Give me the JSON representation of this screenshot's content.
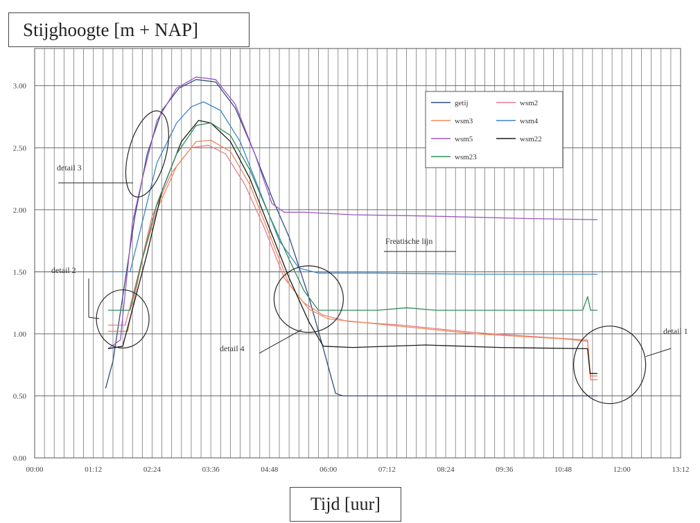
{
  "chart_data": {
    "type": "line",
    "title": "Stijghoogte [m + NAP]",
    "xlabel": "Tijd [uur]",
    "ylabel": "",
    "xlim_hours": [
      0,
      13.2
    ],
    "ylim": [
      0,
      3.3
    ],
    "x_ticks": [
      "00:00",
      "01:12",
      "02:24",
      "03:36",
      "04:48",
      "06:00",
      "07:12",
      "08:24",
      "09:36",
      "10:48",
      "12:00",
      "13:12"
    ],
    "y_ticks": [
      "0.00",
      "0.50",
      "1.00",
      "1.50",
      "2.00",
      "2.50",
      "3.00"
    ],
    "grid": true,
    "legend_position": "top-right",
    "series": [
      {
        "name": "getij",
        "color": "#2e4b7a",
        "points": [
          [
            1.45,
            0.56
          ],
          [
            1.6,
            0.78
          ],
          [
            1.8,
            1.3
          ],
          [
            2.05,
            1.95
          ],
          [
            2.3,
            2.45
          ],
          [
            2.6,
            2.8
          ],
          [
            2.95,
            2.98
          ],
          [
            3.3,
            3.05
          ],
          [
            3.7,
            3.03
          ],
          [
            4.1,
            2.82
          ],
          [
            4.5,
            2.45
          ],
          [
            4.9,
            2.05
          ],
          [
            5.2,
            1.78
          ],
          [
            5.6,
            1.3
          ],
          [
            5.9,
            0.88
          ],
          [
            6.15,
            0.52
          ],
          [
            6.3,
            0.5
          ],
          [
            7.0,
            0.5
          ],
          [
            9.0,
            0.5
          ],
          [
            11.5,
            0.5
          ]
        ]
      },
      {
        "name": "wsm2",
        "color": "#e87b8a",
        "points": [
          [
            1.5,
            1.07
          ],
          [
            1.85,
            1.07
          ],
          [
            2.1,
            1.45
          ],
          [
            2.4,
            1.95
          ],
          [
            2.8,
            2.3
          ],
          [
            3.2,
            2.5
          ],
          [
            3.55,
            2.52
          ],
          [
            3.9,
            2.45
          ],
          [
            4.3,
            2.2
          ],
          [
            4.7,
            1.85
          ],
          [
            5.1,
            1.45
          ],
          [
            5.5,
            1.25
          ],
          [
            5.9,
            1.15
          ],
          [
            6.4,
            1.1
          ],
          [
            7.5,
            1.07
          ],
          [
            9.0,
            1.01
          ],
          [
            10.5,
            0.97
          ],
          [
            11.3,
            0.95
          ],
          [
            11.36,
            0.63
          ],
          [
            11.5,
            0.63
          ]
        ]
      },
      {
        "name": "wsm3",
        "color": "#f08a55",
        "points": [
          [
            1.5,
            1.02
          ],
          [
            1.9,
            1.02
          ],
          [
            2.2,
            1.6
          ],
          [
            2.5,
            2.0
          ],
          [
            2.9,
            2.35
          ],
          [
            3.3,
            2.55
          ],
          [
            3.6,
            2.56
          ],
          [
            4.0,
            2.47
          ],
          [
            4.4,
            2.2
          ],
          [
            4.8,
            1.8
          ],
          [
            5.2,
            1.4
          ],
          [
            5.6,
            1.2
          ],
          [
            6.0,
            1.12
          ],
          [
            7.0,
            1.08
          ],
          [
            9.0,
            1.0
          ],
          [
            10.8,
            0.96
          ],
          [
            11.3,
            0.94
          ],
          [
            11.36,
            0.66
          ],
          [
            11.5,
            0.66
          ]
        ]
      },
      {
        "name": "wsm4",
        "color": "#3a86c8",
        "points": [
          [
            1.5,
            1.5
          ],
          [
            1.95,
            1.5
          ],
          [
            2.2,
            1.9
          ],
          [
            2.5,
            2.38
          ],
          [
            2.9,
            2.7
          ],
          [
            3.2,
            2.83
          ],
          [
            3.45,
            2.87
          ],
          [
            3.8,
            2.8
          ],
          [
            4.2,
            2.55
          ],
          [
            4.6,
            2.15
          ],
          [
            5.0,
            1.75
          ],
          [
            5.4,
            1.53
          ],
          [
            5.8,
            1.49
          ],
          [
            7.0,
            1.49
          ],
          [
            9.0,
            1.48
          ],
          [
            11.5,
            1.48
          ]
        ]
      },
      {
        "name": "wsm5",
        "color": "#9b55c4",
        "points": [
          [
            1.5,
            0.88
          ],
          [
            1.75,
            0.95
          ],
          [
            2.0,
            1.9
          ],
          [
            2.2,
            2.25
          ],
          [
            2.5,
            2.72
          ],
          [
            2.9,
            2.98
          ],
          [
            3.3,
            3.07
          ],
          [
            3.7,
            3.05
          ],
          [
            4.1,
            2.85
          ],
          [
            4.5,
            2.45
          ],
          [
            4.85,
            2.05
          ],
          [
            5.1,
            1.98
          ],
          [
            5.5,
            1.98
          ],
          [
            6.5,
            1.96
          ],
          [
            8.0,
            1.95
          ],
          [
            10.0,
            1.93
          ],
          [
            11.5,
            1.92
          ]
        ]
      },
      {
        "name": "wsm22",
        "color": "#1a1a1a",
        "points": [
          [
            1.5,
            0.88
          ],
          [
            1.8,
            0.9
          ],
          [
            2.0,
            1.2
          ],
          [
            2.3,
            1.65
          ],
          [
            2.6,
            2.15
          ],
          [
            3.0,
            2.55
          ],
          [
            3.35,
            2.72
          ],
          [
            3.6,
            2.7
          ],
          [
            4.0,
            2.55
          ],
          [
            4.4,
            2.25
          ],
          [
            4.8,
            1.85
          ],
          [
            5.2,
            1.45
          ],
          [
            5.6,
            1.1
          ],
          [
            5.9,
            0.9
          ],
          [
            6.5,
            0.89
          ],
          [
            8.0,
            0.91
          ],
          [
            9.5,
            0.89
          ],
          [
            11.3,
            0.88
          ],
          [
            11.35,
            0.68
          ],
          [
            11.5,
            0.68
          ]
        ]
      },
      {
        "name": "wsm23",
        "color": "#2e8b57",
        "points": [
          [
            1.5,
            1.19
          ],
          [
            1.95,
            1.19
          ],
          [
            2.2,
            1.6
          ],
          [
            2.5,
            2.05
          ],
          [
            2.9,
            2.45
          ],
          [
            3.3,
            2.68
          ],
          [
            3.6,
            2.7
          ],
          [
            4.0,
            2.6
          ],
          [
            4.4,
            2.32
          ],
          [
            4.8,
            1.95
          ],
          [
            5.2,
            1.6
          ],
          [
            5.5,
            1.35
          ],
          [
            5.8,
            1.19
          ],
          [
            7.0,
            1.19
          ],
          [
            7.6,
            1.21
          ],
          [
            8.2,
            1.19
          ],
          [
            11.2,
            1.19
          ],
          [
            11.3,
            1.3
          ],
          [
            11.36,
            1.19
          ],
          [
            11.5,
            1.19
          ]
        ]
      }
    ],
    "annotations": [
      "detail 1",
      "detail 2",
      "detail 3",
      "detail 4",
      "Freatische lijn"
    ]
  },
  "labels": {
    "title": "Stijghoogte [m + NAP]",
    "xlabel": "Tijd [uur]"
  }
}
